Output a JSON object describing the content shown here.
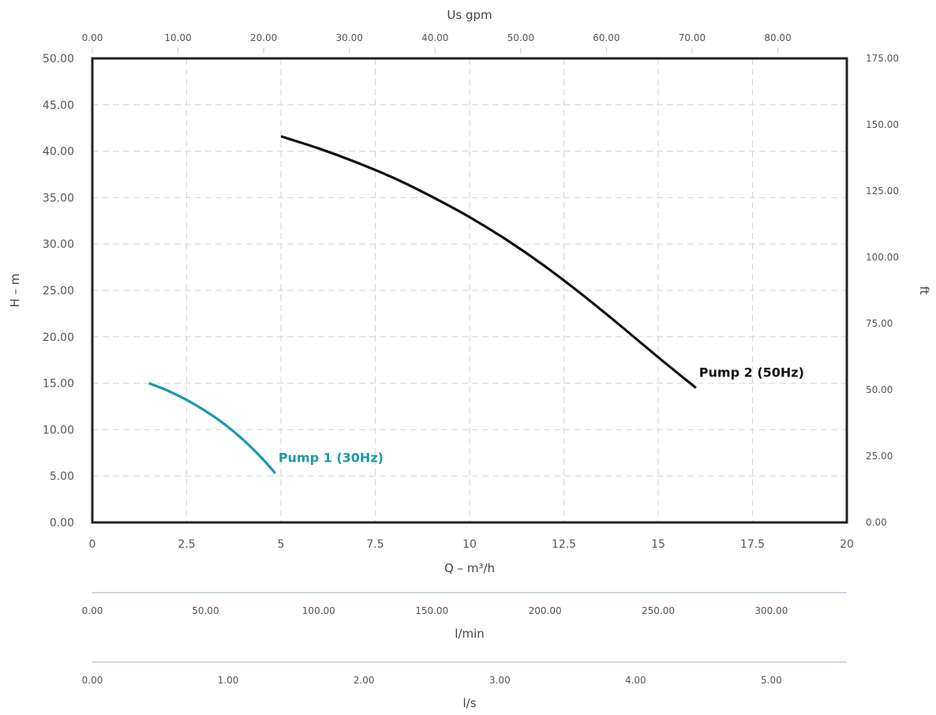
{
  "colors": {
    "pump1": "#1a9aa6",
    "pump2": "#111111",
    "axis": "#222222",
    "grid": "#d6d6d6",
    "tick_text": "#555555",
    "secondary_axis": "#b8c9dc"
  },
  "chart_data": {
    "type": "line",
    "grid": true,
    "x": {
      "label": "Q – m³/h",
      "lim": [
        0,
        20
      ],
      "ticks": [
        "0",
        "2.5",
        "5",
        "7.5",
        "10",
        "12.5",
        "15",
        "17.5",
        "20"
      ]
    },
    "y": {
      "label": "H – m",
      "lim": [
        0,
        50
      ],
      "ticks": [
        "0.00",
        "5.00",
        "10.00",
        "15.00",
        "20.00",
        "25.00",
        "30.00",
        "35.00",
        "40.00",
        "45.00",
        "50.00"
      ]
    },
    "y_right": {
      "label": "ft",
      "lim": [
        0,
        175
      ],
      "ticks": [
        "0.00",
        "25.00",
        "50.00",
        "75.00",
        "100.00",
        "125.00",
        "150.00",
        "175.00"
      ]
    },
    "x_top": {
      "label": "Us gpm",
      "ticks": [
        "0.00",
        "10.00",
        "20.00",
        "30.00",
        "40.00",
        "50.00",
        "60.00",
        "70.00",
        "80.00"
      ]
    },
    "x_lmin": {
      "label": "l/min",
      "ticks": [
        "0.00",
        "50.00",
        "100.00",
        "150.00",
        "200.00",
        "250.00",
        "300.00"
      ]
    },
    "x_ls": {
      "label": "l/s",
      "ticks": [
        "0.00",
        "1.00",
        "2.00",
        "3.00",
        "4.00",
        "5.00"
      ]
    },
    "series": [
      {
        "name": "Pump 1 (30Hz)",
        "color": "#1a9aa6",
        "x": [
          1.5,
          2.0,
          2.5,
          3.0,
          3.5,
          4.0,
          4.5,
          4.85
        ],
        "y": [
          15.0,
          14.2,
          13.2,
          12.0,
          10.6,
          8.9,
          6.9,
          5.3
        ]
      },
      {
        "name": "Pump 2 (50Hz)",
        "color": "#111111",
        "x": [
          5.0,
          6.0,
          7.0,
          8.0,
          9.0,
          10.0,
          11.0,
          12.0,
          13.0,
          14.0,
          15.0,
          16.0
        ],
        "y": [
          41.6,
          40.3,
          38.8,
          37.1,
          35.1,
          32.9,
          30.4,
          27.6,
          24.5,
          21.2,
          17.8,
          14.5
        ]
      }
    ]
  }
}
